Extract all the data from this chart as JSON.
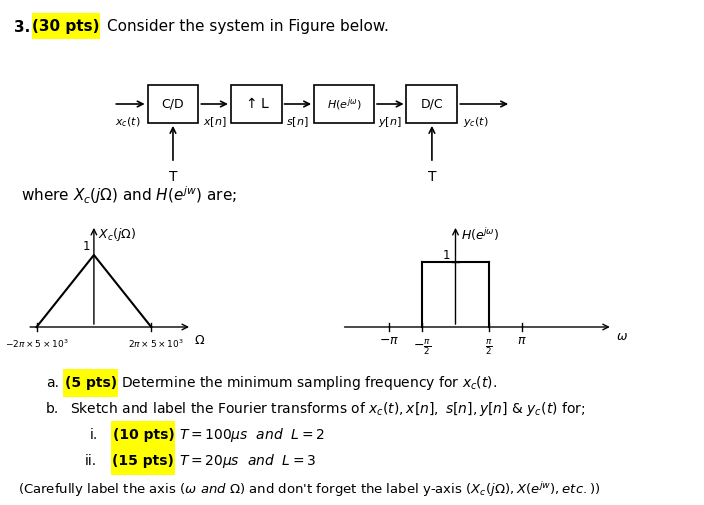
{
  "title_number": "3.",
  "title_pts": "(30 pts)",
  "title_text": "Consider the system in Figure below.",
  "where_text": "where $X_c(j\\Omega)$ and $H(e^{jw})$ are;",
  "background_color": "#ffffff"
}
